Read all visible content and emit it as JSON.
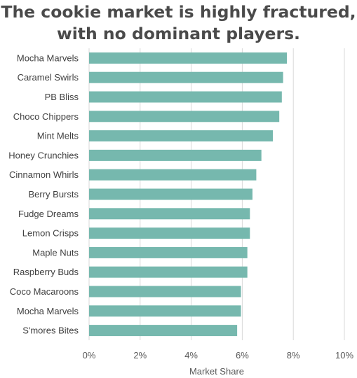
{
  "chart_data": {
    "type": "bar",
    "orientation": "horizontal",
    "title": [
      "The cookie market is highly fractured,",
      "with no dominant players."
    ],
    "categories": [
      "Mocha Marvels",
      "Caramel Swirls",
      "PB Bliss",
      "Choco Chippers",
      "Mint Melts",
      "Honey Crunchies",
      "Cinnamon Whirls",
      "Berry Bursts",
      "Fudge Dreams",
      "Lemon Crisps",
      "Maple Nuts",
      "Raspberry Buds",
      "Coco Macaroons",
      "Mocha Marvels",
      "S'mores Bites"
    ],
    "values": [
      7.75,
      7.6,
      7.55,
      7.45,
      7.2,
      6.75,
      6.55,
      6.4,
      6.3,
      6.3,
      6.2,
      6.2,
      5.95,
      5.95,
      5.8
    ],
    "xlabel": "Market Share",
    "ylabel": "",
    "xlim": [
      0,
      10
    ],
    "x_ticks": [
      "0%",
      "2%",
      "4%",
      "6%",
      "8%",
      "10%"
    ],
    "grid": "vertical",
    "bar_color": "#76b8ae",
    "grid_color": "#d9d9d9",
    "legend": "none"
  }
}
